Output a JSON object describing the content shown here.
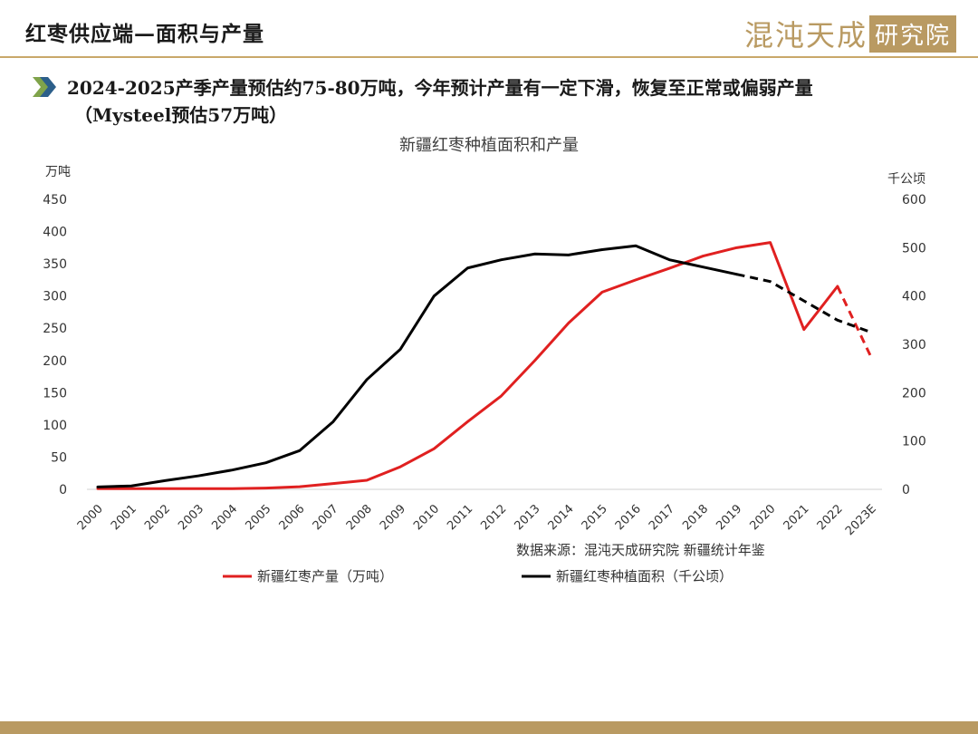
{
  "slide": {
    "title": "红枣供应端—面积与产量",
    "logo_main": "混沌天成",
    "logo_box": "研究院",
    "headline_line1": "2024-2025产季产量预估约75-80万吨，今年预计产量有一定下滑，恢复至正常或偏弱产量",
    "headline_line2": "（Mysteel预估57万吨）"
  },
  "colors": {
    "accent": "#b99a62",
    "series_red": "#e02020",
    "series_black": "#000000"
  },
  "chart_data": {
    "type": "line",
    "title": "新疆红枣种植面积和产量",
    "source": "数据来源：混沌天成研究院  新疆统计年鉴",
    "x": [
      "2000",
      "2001",
      "2002",
      "2003",
      "2004",
      "2005",
      "2006",
      "2007",
      "2008",
      "2009",
      "2010",
      "2011",
      "2012",
      "2013",
      "2014",
      "2015",
      "2016",
      "2017",
      "2018",
      "2019",
      "2020",
      "2021",
      "2022",
      "2023E"
    ],
    "y_left": {
      "label": "万吨",
      "ylim": [
        0,
        450
      ],
      "ticks": [
        0,
        50,
        100,
        150,
        200,
        250,
        300,
        350,
        400,
        450
      ]
    },
    "y_right": {
      "label": "千公顷",
      "ylim": [
        0,
        600
      ],
      "ticks": [
        0,
        100,
        200,
        300,
        400,
        500,
        600
      ]
    },
    "series": [
      {
        "name": "新疆红枣产量（万吨）",
        "axis": "left",
        "color": "#e02020",
        "values": [
          1,
          1,
          1,
          1,
          1,
          2,
          4,
          9,
          14,
          35,
          63,
          105,
          145,
          200,
          258,
          306,
          325,
          343,
          362,
          375,
          383,
          248,
          315,
          205
        ],
        "dashed_from_index": 22
      },
      {
        "name": "新疆红枣种植面积（千公顷）",
        "axis": "right",
        "color": "#000000",
        "values": [
          5,
          7,
          18,
          28,
          40,
          55,
          80,
          140,
          227,
          290,
          400,
          458,
          475,
          487,
          485,
          496,
          504,
          475,
          460,
          445,
          430,
          390,
          350,
          325
        ],
        "dashed_from_index": 19
      }
    ],
    "legend_position": "bottom",
    "grid": false
  }
}
